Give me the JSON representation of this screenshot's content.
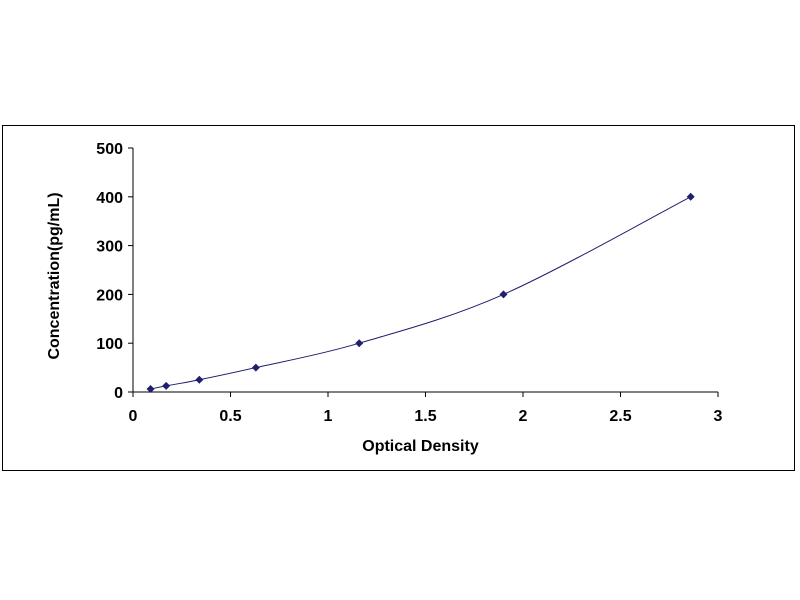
{
  "chart_data": {
    "type": "scatter",
    "title": "",
    "xlabel": "Optical Density",
    "ylabel": "Concentration(pg/mL)",
    "xlim": [
      0,
      3
    ],
    "ylim": [
      0,
      500
    ],
    "x_ticks": [
      0,
      0.5,
      1,
      1.5,
      2,
      2.5,
      3
    ],
    "x_tick_labels": [
      "0",
      "0.5",
      "1",
      "1.5",
      "2",
      "2.5",
      "3"
    ],
    "y_ticks": [
      0,
      100,
      200,
      300,
      400,
      500
    ],
    "y_tick_labels": [
      "0",
      "100",
      "200",
      "300",
      "400",
      "500"
    ],
    "grid": false,
    "legend": "none",
    "marker_color": "#1f1f6e",
    "curve_color": "#1f1f6e",
    "series": [
      {
        "points": [
          {
            "x": 0.09,
            "y": 6.25
          },
          {
            "x": 0.17,
            "y": 12.5
          },
          {
            "x": 0.34,
            "y": 25
          },
          {
            "x": 0.63,
            "y": 50
          },
          {
            "x": 1.16,
            "y": 100
          },
          {
            "x": 1.9,
            "y": 200
          },
          {
            "x": 2.86,
            "y": 400
          }
        ],
        "trendline": "smooth"
      }
    ]
  }
}
